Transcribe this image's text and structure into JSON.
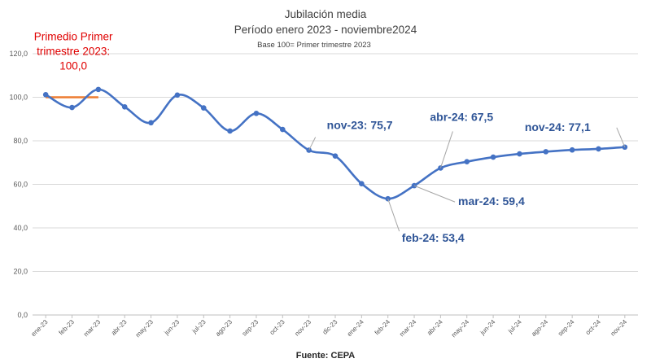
{
  "chart_data": {
    "type": "line",
    "title": "Jubilación media",
    "subtitle": "Período enero 2023 - noviembre2024",
    "note": "Base 100=  Primer trimestre 2023",
    "source": "Fuente: CEPA",
    "ylim": [
      0,
      120
    ],
    "yticks": [
      "0,0",
      "20,0",
      "40,0",
      "60,0",
      "80,0",
      "100,0",
      "120,0"
    ],
    "grid": true,
    "categories": [
      "ene-23",
      "feb-23",
      "mar-23",
      "abr-23",
      "may-23",
      "jun-23",
      "jul-23",
      "ago-23",
      "sep-23",
      "oct-23",
      "nov-23",
      "dic-23",
      "ene-24",
      "feb-24",
      "mar-24",
      "abr-24",
      "may-24",
      "jun-24",
      "jul-24",
      "ago-24",
      "sep-24",
      "oct-24",
      "nov-24"
    ],
    "series": [
      {
        "color": "#4472C4",
        "values": [
          101.2,
          95.3,
          103.6,
          95.6,
          88.3,
          101.0,
          95.1,
          84.5,
          92.6,
          85.2,
          75.7,
          73.0,
          60.3,
          53.4,
          59.4,
          67.5,
          70.4,
          72.5,
          74.0,
          75.0,
          75.8,
          76.3,
          77.1
        ]
      }
    ],
    "reference": {
      "label_lines": [
        "Primedio Primer",
        "trimestre 2023:",
        "100,0"
      ],
      "value": 100.0,
      "from_category": "ene-23",
      "to_category": "mar-23",
      "color": "#ED7D31",
      "label_color": "#E00000"
    },
    "annotations": [
      {
        "text": "nov-23: 75,7",
        "category": "nov-23",
        "value": 75.7
      },
      {
        "text": "abr-24: 67,5",
        "category": "abr-24",
        "value": 67.5
      },
      {
        "text": "nov-24: 77,1",
        "category": "nov-24",
        "value": 77.1
      },
      {
        "text": "mar-24: 59,4",
        "category": "mar-24",
        "value": 59.4
      },
      {
        "text": "feb-24: 53,4",
        "category": "feb-24",
        "value": 53.4
      }
    ],
    "annotation_color": "#2F5597"
  }
}
